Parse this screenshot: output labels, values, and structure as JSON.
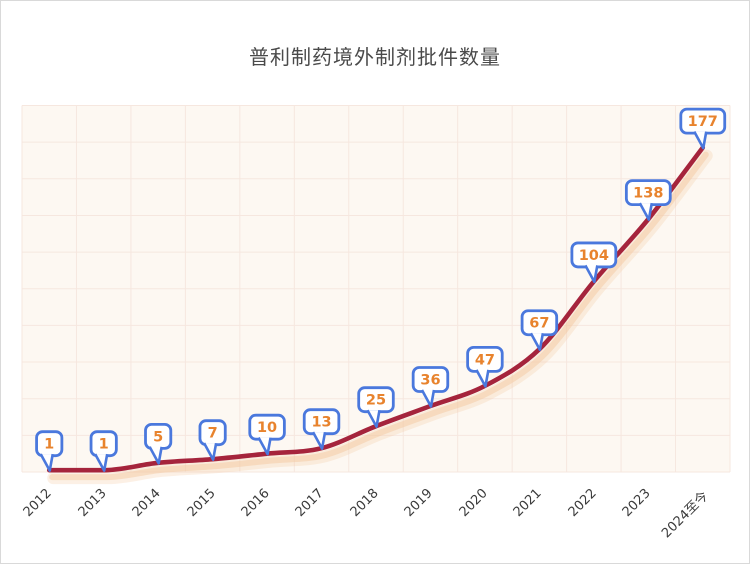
{
  "title": "普利制药境外制剂批件数量",
  "chart_data": {
    "type": "line",
    "title": "普利制药境外制剂批件数量",
    "categories": [
      "2012",
      "2013",
      "2014",
      "2015",
      "2016",
      "2017",
      "2018",
      "2019",
      "2020",
      "2021",
      "2022",
      "2023",
      "2024至今"
    ],
    "values": [
      1,
      1,
      5,
      7,
      10,
      13,
      25,
      36,
      47,
      67,
      104,
      138,
      177
    ],
    "xlabel": "",
    "ylabel": "",
    "ylim": [
      0,
      200
    ],
    "y_gridline_step": 20,
    "grid": true,
    "legend": "none",
    "smooth": true,
    "colors": {
      "line": "#a5243c",
      "line_shadow": "#f3c9a2",
      "plot_bg": "#fdf8f2",
      "gridline": "#f6e7df",
      "callout_border": "#4a78dd",
      "callout_bg": "#ffffff",
      "callout_text": "#e8832d",
      "title_text": "#4a4a4a",
      "axis_label_text": "#3a3a3a"
    }
  }
}
